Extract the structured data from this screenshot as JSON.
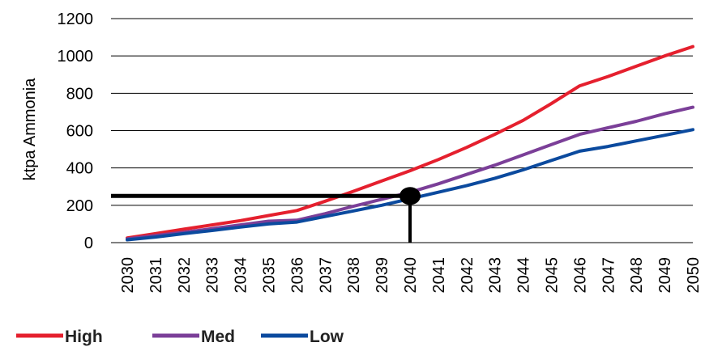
{
  "chart_data": {
    "type": "line",
    "title": "",
    "xlabel": "",
    "ylabel": "ktpa Ammonia",
    "ylim": [
      0,
      1200
    ],
    "yticks": [
      0,
      200,
      400,
      600,
      800,
      1000,
      1200
    ],
    "grid": "horizontal",
    "legend_position": "bottom-left",
    "categories": [
      "2030",
      "2031",
      "2032",
      "2033",
      "2034",
      "2035",
      "2036",
      "2037",
      "2038",
      "2039",
      "2040",
      "2041",
      "2042",
      "2043",
      "2044",
      "2045",
      "2046",
      "2047",
      "2048",
      "2049",
      "2050"
    ],
    "series": [
      {
        "name": "High",
        "color": "#e5202e",
        "values": [
          25,
          48,
          72,
          95,
          118,
          145,
          172,
          222,
          275,
          330,
          385,
          445,
          510,
          580,
          655,
          745,
          840,
          890,
          945,
          1000,
          1050
        ]
      },
      {
        "name": "Med",
        "color": "#7b3f98",
        "values": [
          20,
          38,
          55,
          75,
          95,
          115,
          120,
          155,
          195,
          232,
          270,
          315,
          365,
          415,
          470,
          525,
          580,
          615,
          650,
          690,
          725
        ]
      },
      {
        "name": "Low",
        "color": "#0b4a9e",
        "values": [
          15,
          30,
          48,
          65,
          83,
          100,
          110,
          140,
          170,
          200,
          235,
          270,
          305,
          345,
          390,
          440,
          490,
          515,
          545,
          575,
          605
        ]
      }
    ],
    "annotation": {
      "x": "2040",
      "y": 250,
      "color": "#000000"
    }
  }
}
